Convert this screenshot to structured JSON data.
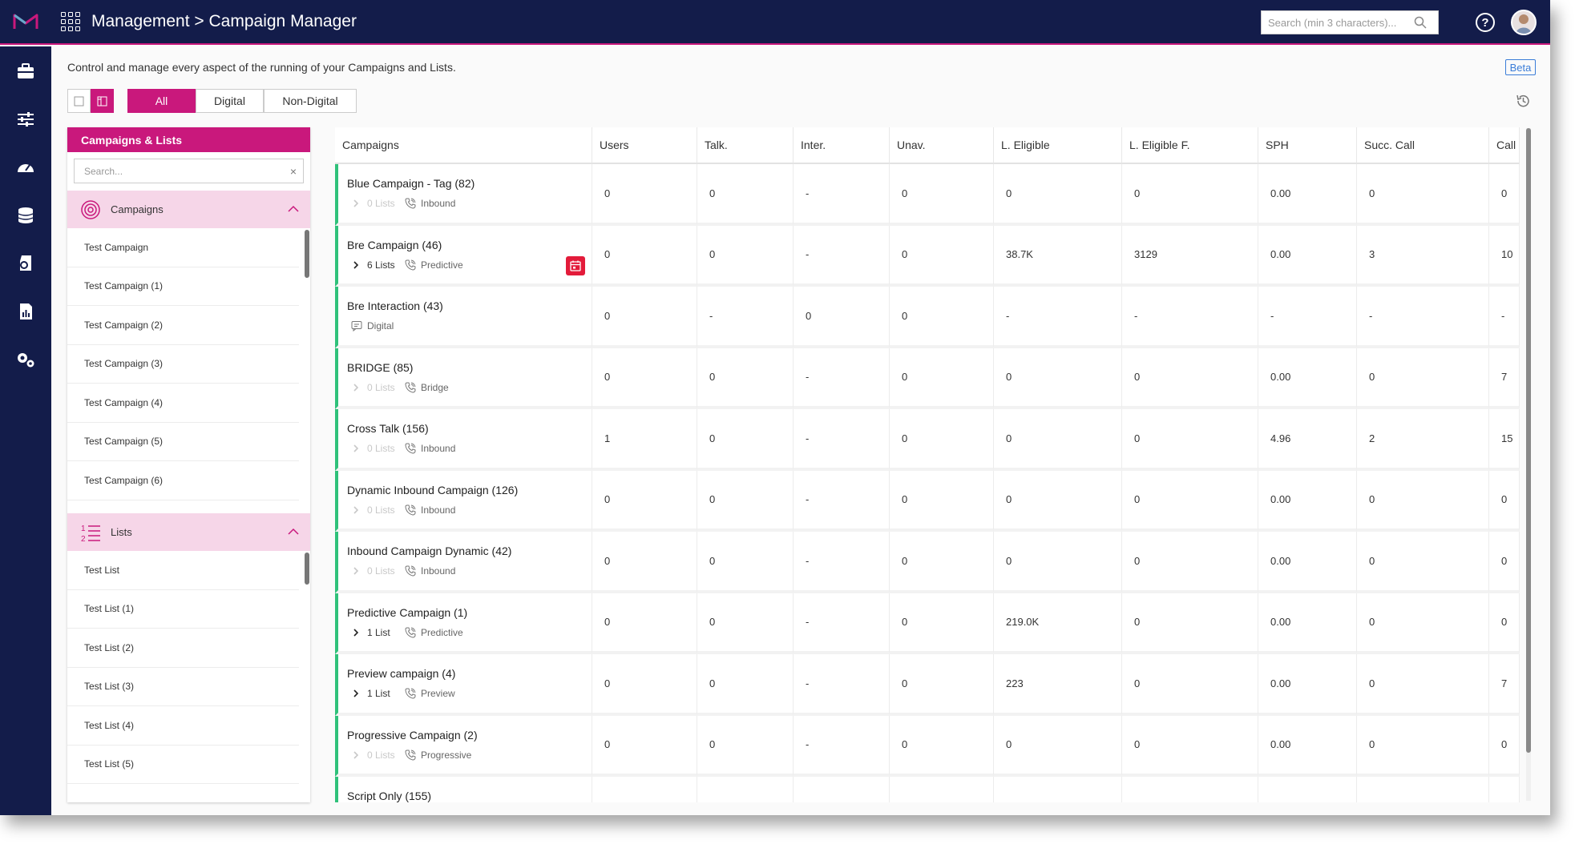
{
  "header": {
    "title": "Management > Campaign Manager",
    "search_placeholder": "Search (min 3 characters)...",
    "help_label": "?"
  },
  "sidenav": [
    "briefcase-icon",
    "sliders-icon",
    "dashboard-icon",
    "database-icon",
    "shield-icon",
    "report-icon",
    "settings-icon"
  ],
  "description": "Control and manage every aspect of the running of your Campaigns and Lists.",
  "beta_label": "Beta",
  "filter_tabs": [
    "All",
    "Digital",
    "Non-Digital"
  ],
  "left_panel": {
    "title": "Campaigns & Lists",
    "search_placeholder": "Search...",
    "clear": "×",
    "campaigns_label": "Campaigns",
    "campaigns": [
      "Test Campaign",
      "Test Campaign (1)",
      "Test Campaign (2)",
      "Test Campaign (3)",
      "Test Campaign (4)",
      "Test Campaign (5)",
      "Test Campaign (6)"
    ],
    "lists_label": "Lists",
    "lists": [
      "Test List",
      "Test List (1)",
      "Test List (2)",
      "Test List (3)",
      "Test List (4)",
      "Test List (5)"
    ]
  },
  "table": {
    "columns": [
      "Campaigns",
      "Users",
      "Talk.",
      "Inter.",
      "Unav.",
      "L. Eligible",
      "L. Eligible F.",
      "SPH",
      "Succ. Call",
      "Call"
    ],
    "rows": [
      {
        "name": "Blue Campaign - Tag (82)",
        "lists": "0 Lists",
        "lists_disabled": true,
        "type": "Inbound",
        "values": [
          "0",
          "0",
          "-",
          "0",
          "0",
          "0",
          "0.00",
          "0",
          "0"
        ]
      },
      {
        "name": "Bre Campaign (46)",
        "lists": "6 Lists",
        "lists_disabled": false,
        "type": "Predictive",
        "calendar": true,
        "values": [
          "0",
          "0",
          "-",
          "0",
          "38.7K",
          "3129",
          "0.00",
          "3",
          "10"
        ]
      },
      {
        "name": "Bre Interaction (43)",
        "lists": "",
        "type": "Digital",
        "digital": true,
        "values": [
          "0",
          "-",
          "0",
          "0",
          "-",
          "-",
          "-",
          "-",
          "-"
        ]
      },
      {
        "name": "BRIDGE (85)",
        "lists": "0 Lists",
        "lists_disabled": true,
        "type": "Bridge",
        "values": [
          "0",
          "0",
          "-",
          "0",
          "0",
          "0",
          "0.00",
          "0",
          "7"
        ]
      },
      {
        "name": "Cross Talk (156)",
        "lists": "0 Lists",
        "lists_disabled": true,
        "type": "Inbound",
        "values": [
          "1",
          "0",
          "-",
          "0",
          "0",
          "0",
          "4.96",
          "2",
          "15"
        ]
      },
      {
        "name": "Dynamic Inbound Campaign (126)",
        "lists": "0 Lists",
        "lists_disabled": true,
        "type": "Inbound",
        "values": [
          "0",
          "0",
          "-",
          "0",
          "0",
          "0",
          "0.00",
          "0",
          "0"
        ]
      },
      {
        "name": "Inbound Campaign Dynamic (42)",
        "lists": "0 Lists",
        "lists_disabled": true,
        "type": "Inbound",
        "values": [
          "0",
          "0",
          "-",
          "0",
          "0",
          "0",
          "0.00",
          "0",
          "0"
        ]
      },
      {
        "name": "Predictive Campaign (1)",
        "lists": "1 List",
        "lists_disabled": false,
        "type": "Predictive",
        "values": [
          "0",
          "0",
          "-",
          "0",
          "219.0K",
          "0",
          "0.00",
          "0",
          "0"
        ]
      },
      {
        "name": "Preview campaign (4)",
        "lists": "1 List",
        "lists_disabled": false,
        "type": "Preview",
        "values": [
          "0",
          "0",
          "-",
          "0",
          "223",
          "0",
          "0.00",
          "0",
          "7"
        ]
      },
      {
        "name": "Progressive Campaign (2)",
        "lists": "0 Lists",
        "lists_disabled": true,
        "type": "Progressive",
        "values": [
          "0",
          "0",
          "-",
          "0",
          "0",
          "0",
          "0.00",
          "0",
          "0"
        ]
      },
      {
        "name": "Script Only (155)",
        "lists": "",
        "lists_disabled": true,
        "type": "",
        "values": [
          "",
          "",
          "",
          "",
          "",
          "",
          "",
          "",
          ""
        ]
      }
    ]
  },
  "colors": {
    "navy": "#131c4a",
    "brand": "#c9187c",
    "section_bg": "#f6d6e8",
    "active_border": "#2fc17a",
    "calendar": "#e31b3a",
    "beta": "#3b7dd8"
  }
}
